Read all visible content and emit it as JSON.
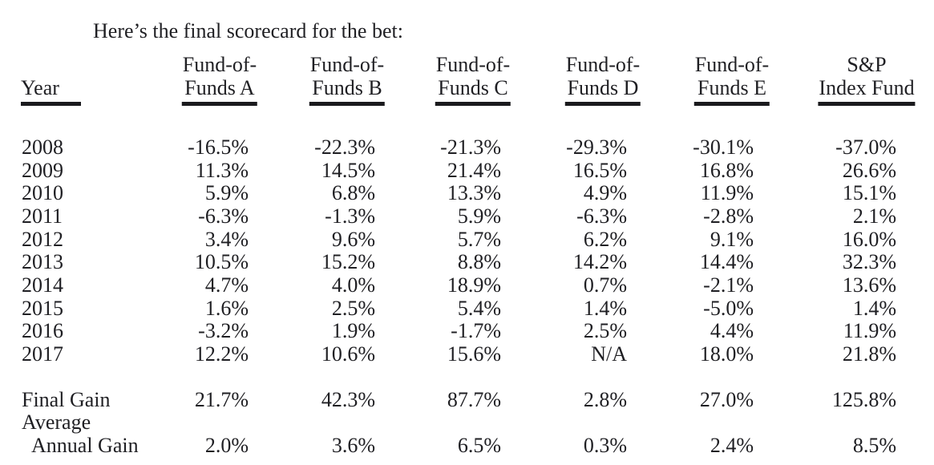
{
  "intro": "Here’s the final scorecard for the bet:",
  "table": {
    "year_header": "Year",
    "fund_headers": [
      {
        "line1": "Fund-of-",
        "line2": "Funds A"
      },
      {
        "line1": "Fund-of-",
        "line2": "Funds B"
      },
      {
        "line1": "Fund-of-",
        "line2": "Funds C"
      },
      {
        "line1": "Fund-of-",
        "line2": "Funds D"
      },
      {
        "line1": "Fund-of-",
        "line2": "Funds E"
      },
      {
        "line1": "S&P",
        "line2": "Index Fund"
      }
    ],
    "rows": [
      {
        "label": "2008",
        "indent": false,
        "values": [
          "-16.5%",
          "-22.3%",
          "-21.3%",
          "-29.3%",
          "-30.1%",
          "-37.0%"
        ]
      },
      {
        "label": "2009",
        "indent": false,
        "values": [
          "11.3%",
          "14.5%",
          "21.4%",
          "16.5%",
          "16.8%",
          "26.6%"
        ]
      },
      {
        "label": "2010",
        "indent": false,
        "values": [
          "5.9%",
          "6.8%",
          "13.3%",
          "4.9%",
          "11.9%",
          "15.1%"
        ]
      },
      {
        "label": "2011",
        "indent": false,
        "values": [
          "-6.3%",
          "-1.3%",
          "5.9%",
          "-6.3%",
          "-2.8%",
          "2.1%"
        ]
      },
      {
        "label": "2012",
        "indent": false,
        "values": [
          "3.4%",
          "9.6%",
          "5.7%",
          "6.2%",
          "9.1%",
          "16.0%"
        ]
      },
      {
        "label": "2013",
        "indent": false,
        "values": [
          "10.5%",
          "15.2%",
          "8.8%",
          "14.2%",
          "14.4%",
          "32.3%"
        ]
      },
      {
        "label": "2014",
        "indent": false,
        "values": [
          "4.7%",
          "4.0%",
          "18.9%",
          "0.7%",
          "-2.1%",
          "13.6%"
        ]
      },
      {
        "label": "2015",
        "indent": false,
        "values": [
          "1.6%",
          "2.5%",
          "5.4%",
          "1.4%",
          "-5.0%",
          "1.4%"
        ]
      },
      {
        "label": "2016",
        "indent": false,
        "values": [
          "-3.2%",
          "1.9%",
          "-1.7%",
          "2.5%",
          "4.4%",
          "11.9%"
        ]
      },
      {
        "label": "2017",
        "indent": false,
        "values": [
          "12.2%",
          "10.6%",
          "15.6%",
          "N/A",
          "18.0%",
          "21.8%"
        ]
      },
      {
        "label": "Final Gain",
        "indent": false,
        "values": [
          "21.7%",
          "42.3%",
          "87.7%",
          "2.8%",
          "27.0%",
          "125.8%"
        ]
      },
      {
        "label": "Average",
        "indent": false,
        "values": [
          "",
          "",
          "",
          "",
          "",
          ""
        ]
      },
      {
        "label": "Annual Gain",
        "indent": true,
        "values": [
          "2.0%",
          "3.6%",
          "6.5%",
          "0.3%",
          "2.4%",
          "8.5%"
        ]
      }
    ]
  },
  "chart_data": {
    "type": "table",
    "title": "Here’s the final scorecard for the bet:",
    "columns": [
      "Year",
      "Fund-of-Funds A",
      "Fund-of-Funds B",
      "Fund-of-Funds C",
      "Fund-of-Funds D",
      "Fund-of-Funds E",
      "S&P Index Fund"
    ],
    "years": [
      2008,
      2009,
      2010,
      2011,
      2012,
      2013,
      2014,
      2015,
      2016,
      2017
    ],
    "series": [
      {
        "name": "Fund-of-Funds A",
        "values": [
          -16.5,
          11.3,
          5.9,
          -6.3,
          3.4,
          10.5,
          4.7,
          1.6,
          -3.2,
          12.2
        ],
        "final_gain": 21.7,
        "average_annual_gain": 2.0
      },
      {
        "name": "Fund-of-Funds B",
        "values": [
          -22.3,
          14.5,
          6.8,
          -1.3,
          9.6,
          15.2,
          4.0,
          2.5,
          1.9,
          10.6
        ],
        "final_gain": 42.3,
        "average_annual_gain": 3.6
      },
      {
        "name": "Fund-of-Funds C",
        "values": [
          -21.3,
          21.4,
          13.3,
          5.9,
          5.7,
          8.8,
          18.9,
          5.4,
          -1.7,
          15.6
        ],
        "final_gain": 87.7,
        "average_annual_gain": 6.5
      },
      {
        "name": "Fund-of-Funds D",
        "values": [
          -29.3,
          16.5,
          4.9,
          -6.3,
          6.2,
          14.2,
          0.7,
          1.4,
          2.5,
          null
        ],
        "final_gain": 2.8,
        "average_annual_gain": 0.3
      },
      {
        "name": "Fund-of-Funds E",
        "values": [
          -30.1,
          16.8,
          11.9,
          -2.8,
          9.1,
          14.4,
          -2.1,
          -5.0,
          4.4,
          18.0
        ],
        "final_gain": 27.0,
        "average_annual_gain": 2.4
      },
      {
        "name": "S&P Index Fund",
        "values": [
          -37.0,
          26.6,
          15.1,
          2.1,
          16.0,
          32.3,
          13.6,
          1.4,
          11.9,
          21.8
        ],
        "final_gain": 125.8,
        "average_annual_gain": 8.5
      }
    ],
    "units": "percent"
  }
}
